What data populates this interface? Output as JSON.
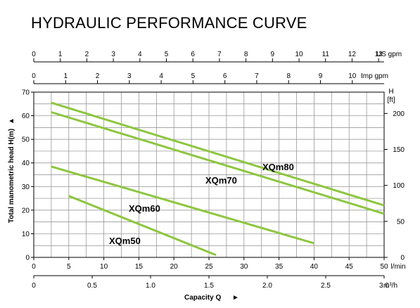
{
  "chart_data": {
    "type": "line",
    "title": "HYDRAULIC PERFORMANCE CURVE",
    "ylabel": "Total manometric head H(m)",
    "ylabel_arrow": "▲",
    "xlabel": "Capacity Q",
    "xlabel_arrow": "►",
    "grid": true,
    "ylim": [
      0,
      70
    ],
    "xlim": [
      0,
      50
    ],
    "x_unit": "l/min",
    "left_y_ticks": [
      "0",
      "10",
      "20",
      "30",
      "40",
      "50",
      "60",
      "70"
    ],
    "bottom_x_ticks": [
      "0",
      "5",
      "10",
      "15",
      "20",
      "25",
      "30",
      "35",
      "40",
      "45",
      "50"
    ],
    "top_axis_us": {
      "unit": "US gpm",
      "ticks": [
        "0",
        "1",
        "2",
        "3",
        "4",
        "5",
        "6",
        "7",
        "8",
        "9",
        "10",
        "11",
        "12",
        "13"
      ]
    },
    "top_axis_imp": {
      "unit": "Imp gpm",
      "ticks": [
        "0",
        "1",
        "2",
        "3",
        "4",
        "5",
        "6",
        "7",
        "8",
        "9",
        "10"
      ]
    },
    "right_axis": {
      "unit_line1": "H",
      "unit_line2": "[ft]",
      "ticks": [
        "0",
        "50",
        "100",
        "150",
        "200"
      ]
    },
    "bottom_axis_m3h": {
      "unit": "m³/h",
      "ticks": [
        "0",
        "0.5",
        "1.0",
        "1.5",
        "2.0",
        "2.5",
        "3.0"
      ]
    },
    "series": [
      {
        "name": "XQm80",
        "x": [
          2.5,
          50
        ],
        "y": [
          65.5,
          22
        ]
      },
      {
        "name": "XQm70",
        "x": [
          2.5,
          50
        ],
        "y": [
          61.5,
          18.5
        ]
      },
      {
        "name": "XQm60",
        "x": [
          2.5,
          40
        ],
        "y": [
          38.5,
          6
        ]
      },
      {
        "name": "XQm50",
        "x": [
          5,
          26
        ],
        "y": [
          26,
          1
        ]
      }
    ],
    "line_color": "#8dc63f"
  }
}
